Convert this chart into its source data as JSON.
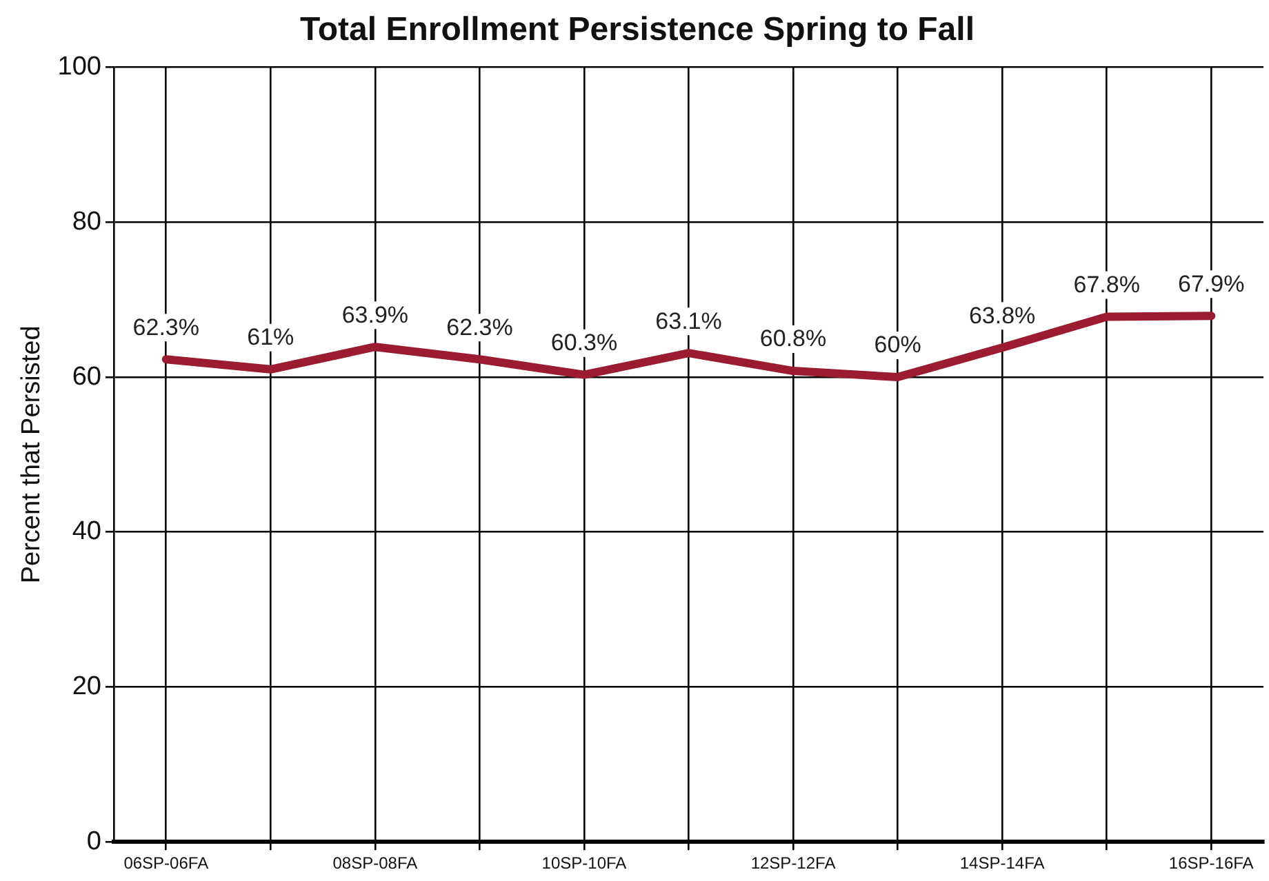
{
  "chart_data": {
    "type": "line",
    "title": "Total Enrollment Persistence Spring to Fall",
    "ylabel": "Percent that Persisted",
    "categories": [
      "06SP-06FA",
      null,
      "08SP-08FA",
      null,
      "10SP-10FA",
      null,
      "12SP-12FA",
      null,
      "14SP-14FA",
      null,
      "16SP-16FA"
    ],
    "series": [
      {
        "color": "#9b1b30",
        "values": [
          62.3,
          61,
          63.9,
          62.3,
          60.3,
          63.1,
          60.8,
          60,
          63.8,
          67.8,
          67.9
        ],
        "value_labels": [
          "62.3%",
          "61%",
          "63.9%",
          "62.3%",
          "60.3%",
          "63.1%",
          "60.8%",
          "60%",
          "63.8%",
          "67.8%",
          "67.9%"
        ]
      }
    ],
    "ylim": [
      0,
      100
    ],
    "yticks": [
      0,
      20,
      40,
      60,
      80,
      100
    ],
    "grid": true,
    "legend": false,
    "marker": "none",
    "line_style": "solid"
  }
}
